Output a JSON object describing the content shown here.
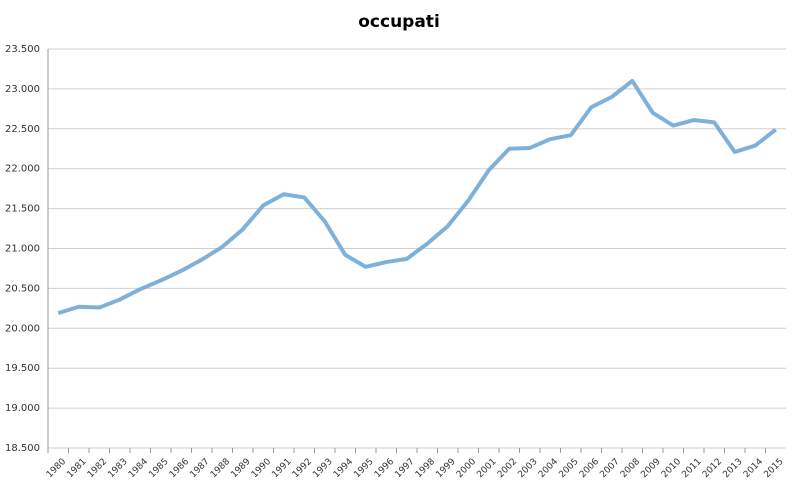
{
  "chart_data": {
    "type": "line",
    "title": "occupati",
    "categories": [
      "1980",
      "1981",
      "1982",
      "1983",
      "1984",
      "1985",
      "1986",
      "1987",
      "1988",
      "1989",
      "1990",
      "1991",
      "1992",
      "1993",
      "1994",
      "1995",
      "1996",
      "1997",
      "1998",
      "1999",
      "2000",
      "2001",
      "2002",
      "2003",
      "2004",
      "2005",
      "2006",
      "2007",
      "2008",
      "2009",
      "2010",
      "2011",
      "2012",
      "2013",
      "2014",
      "2015"
    ],
    "series": [
      {
        "name": "occupati",
        "color": "#7eb1da",
        "values": [
          20190,
          20270,
          20260,
          20360,
          20490,
          20600,
          20720,
          20860,
          21020,
          21240,
          21540,
          21680,
          21640,
          21340,
          20920,
          20770,
          20830,
          20870,
          21060,
          21280,
          21600,
          21980,
          22250,
          22260,
          22370,
          22420,
          22770,
          22900,
          23100,
          22700,
          22540,
          22610,
          22580,
          22210,
          22290,
          22490
        ]
      }
    ],
    "ylim": [
      18500,
      23500
    ],
    "yticks": [
      {
        "value": 18500,
        "label": "18.500"
      },
      {
        "value": 19000,
        "label": "19.000"
      },
      {
        "value": 19500,
        "label": "19.500"
      },
      {
        "value": 20000,
        "label": "20.000"
      },
      {
        "value": 20500,
        "label": "20.500"
      },
      {
        "value": 21000,
        "label": "21.000"
      },
      {
        "value": 21500,
        "label": "21.500"
      },
      {
        "value": 22000,
        "label": "22.000"
      },
      {
        "value": 22500,
        "label": "22.500"
      },
      {
        "value": 23000,
        "label": "23.000"
      },
      {
        "value": 23500,
        "label": "23.500"
      }
    ],
    "grid": true
  }
}
